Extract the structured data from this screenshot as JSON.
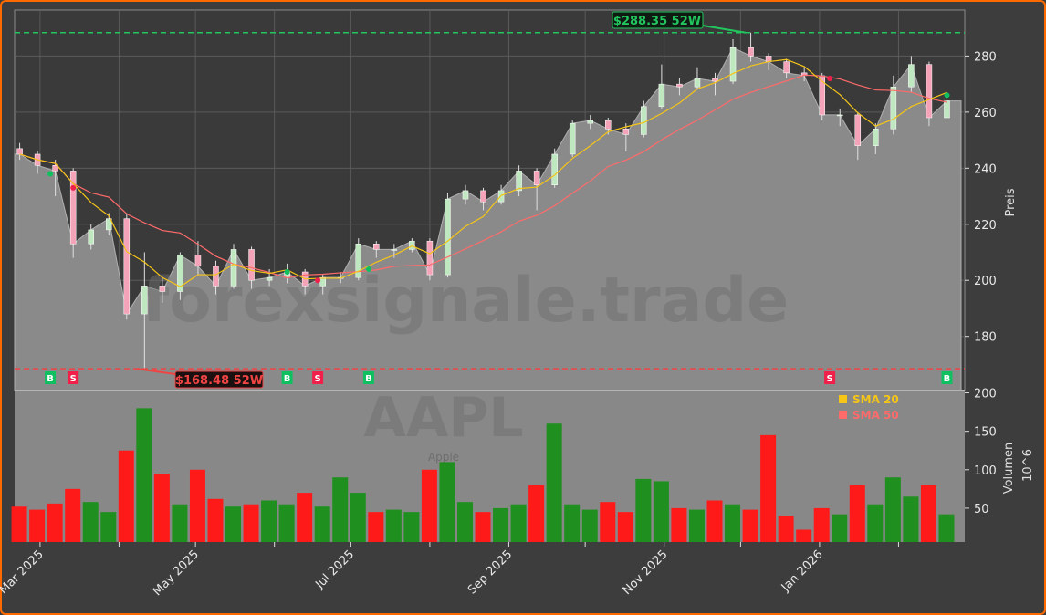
{
  "chart_data": {
    "type": "candlestick",
    "symbol": "AAPL",
    "watermark": "forexsignale.trade",
    "watermark_sub": "Apple",
    "ylabel_price": "Preis",
    "ylabel_volume": "Volumen",
    "volume_unit": "10^6",
    "price_ylim": [
      160.7,
      296.4
    ],
    "volume_ylim": [
      6,
      203
    ],
    "xlim": [
      "2025-02-19",
      "2026-02-27"
    ],
    "price_ticks": [
      180,
      200,
      220,
      240,
      260,
      280
    ],
    "volume_ticks": [
      50,
      100,
      150,
      200
    ],
    "x_ticks": [
      {
        "date": "2025-03-01",
        "label": "Mar 2025"
      },
      {
        "date": "2025-05-01",
        "label": "May 2025"
      },
      {
        "date": "2025-07-01",
        "label": "Jul 2025"
      },
      {
        "date": "2025-09-01",
        "label": "Sep 2025"
      },
      {
        "date": "2025-11-01",
        "label": "Nov 2025"
      },
      {
        "date": "2026-01-01",
        "label": "Jan 2026"
      }
    ],
    "minor_x_ticks": [
      "2025-04-01",
      "2025-06-01",
      "2025-08-01",
      "2025-10-01",
      "2025-12-01",
      "2026-02-01"
    ],
    "grid": true,
    "legend": {
      "placement": "top-right of volume panel",
      "items": [
        {
          "label": "SMA 20",
          "color": "#f5c518"
        },
        {
          "label": "SMA 50",
          "color": "#ff6b6b"
        }
      ]
    },
    "high_52w": {
      "value": 288.35,
      "label": "$288.35 52W",
      "date": "2025-12-03",
      "color": "#22c55e"
    },
    "low_52w": {
      "value": 168.48,
      "label": "$168.48 52W",
      "date": "2025-04-08",
      "color": "#ef4444"
    },
    "signals": [
      {
        "type": "B",
        "date": "2025-03-05",
        "price": 238
      },
      {
        "type": "S",
        "date": "2025-03-14",
        "price": 233
      },
      {
        "type": "B",
        "date": "2025-06-06",
        "price": 203
      },
      {
        "type": "S",
        "date": "2025-06-18",
        "price": 200
      },
      {
        "type": "B",
        "date": "2025-07-08",
        "price": 204
      },
      {
        "type": "S",
        "date": "2026-01-05",
        "price": 272
      },
      {
        "type": "B",
        "date": "2026-02-20",
        "price": 266
      }
    ],
    "columns": [
      "date",
      "open",
      "high",
      "low",
      "close",
      "volume_millions"
    ],
    "ohlcv": [
      [
        "2025-02-21",
        247,
        249,
        243,
        245,
        52
      ],
      [
        "2025-02-28",
        245,
        246,
        238,
        241,
        48
      ],
      [
        "2025-03-07",
        241,
        243,
        230,
        239,
        56
      ],
      [
        "2025-03-14",
        239,
        240,
        208,
        213,
        75
      ],
      [
        "2025-03-21",
        213,
        220,
        211,
        218,
        58
      ],
      [
        "2025-03-28",
        218,
        224,
        216,
        222,
        45
      ],
      [
        "2025-04-04",
        222,
        224,
        186,
        188,
        125
      ],
      [
        "2025-04-11",
        188,
        210,
        168.48,
        198,
        180
      ],
      [
        "2025-04-18",
        198,
        201,
        192,
        196,
        95
      ],
      [
        "2025-04-25",
        196,
        210,
        193,
        209,
        55
      ],
      [
        "2025-05-02",
        209,
        214,
        202,
        205,
        100
      ],
      [
        "2025-05-09",
        205,
        207,
        195,
        198,
        62
      ],
      [
        "2025-05-16",
        198,
        213,
        197,
        211,
        52
      ],
      [
        "2025-05-23",
        211,
        212,
        197,
        200,
        55
      ],
      [
        "2025-05-30",
        200,
        204,
        198,
        201,
        60
      ],
      [
        "2025-06-06",
        201,
        206,
        199,
        203,
        55
      ],
      [
        "2025-06-13",
        203,
        204,
        195,
        198,
        70
      ],
      [
        "2025-06-20",
        198,
        202,
        195,
        201,
        52
      ],
      [
        "2025-06-27",
        201,
        203,
        199,
        201,
        90
      ],
      [
        "2025-07-04",
        201,
        215,
        200,
        213,
        70
      ],
      [
        "2025-07-11",
        213,
        214,
        208,
        211,
        45
      ],
      [
        "2025-07-18",
        211,
        213,
        208,
        211,
        48
      ],
      [
        "2025-07-25",
        211,
        215,
        210,
        214,
        45
      ],
      [
        "2025-08-01",
        214,
        215,
        200,
        202,
        100
      ],
      [
        "2025-08-08",
        202,
        231,
        201,
        229,
        110
      ],
      [
        "2025-08-15",
        229,
        234,
        227,
        232,
        58
      ],
      [
        "2025-08-22",
        232,
        233,
        225,
        228,
        45
      ],
      [
        "2025-08-29",
        228,
        234,
        227,
        232,
        50
      ],
      [
        "2025-09-05",
        232,
        241,
        230,
        239,
        55
      ],
      [
        "2025-09-12",
        239,
        240,
        225,
        234,
        80
      ],
      [
        "2025-09-19",
        234,
        247,
        233,
        245,
        160
      ],
      [
        "2025-09-26",
        245,
        257,
        244,
        256,
        55
      ],
      [
        "2025-10-03",
        256,
        259,
        254,
        257,
        48
      ],
      [
        "2025-10-10",
        257,
        258,
        252,
        254,
        58
      ],
      [
        "2025-10-17",
        254,
        256,
        246,
        252,
        45
      ],
      [
        "2025-10-24",
        252,
        264,
        251,
        262,
        88
      ],
      [
        "2025-10-31",
        262,
        277,
        261,
        270,
        85
      ],
      [
        "2025-11-07",
        270,
        272,
        266,
        269,
        50
      ],
      [
        "2025-11-14",
        269,
        276,
        268,
        272,
        48
      ],
      [
        "2025-11-21",
        272,
        274,
        266,
        271,
        60
      ],
      [
        "2025-11-28",
        271,
        286,
        270,
        283,
        55
      ],
      [
        "2025-12-05",
        283,
        288.35,
        278,
        280,
        48
      ],
      [
        "2025-12-12",
        280,
        281,
        275,
        278,
        145
      ],
      [
        "2025-12-19",
        278,
        279,
        272,
        274,
        40
      ],
      [
        "2025-12-26",
        274,
        276,
        271,
        273,
        22
      ],
      [
        "2026-01-02",
        273,
        274,
        257,
        259,
        50
      ],
      [
        "2026-01-09",
        259,
        261,
        255,
        259,
        42
      ],
      [
        "2026-01-16",
        259,
        260,
        243,
        248,
        80
      ],
      [
        "2026-01-23",
        248,
        256,
        245,
        254,
        55
      ],
      [
        "2026-01-30",
        254,
        273,
        252,
        269,
        90
      ],
      [
        "2026-02-06",
        269,
        280,
        267,
        277,
        65
      ],
      [
        "2026-02-13",
        277,
        278,
        255,
        258,
        80
      ],
      [
        "2026-02-20",
        258,
        267,
        257,
        264,
        42
      ]
    ]
  }
}
